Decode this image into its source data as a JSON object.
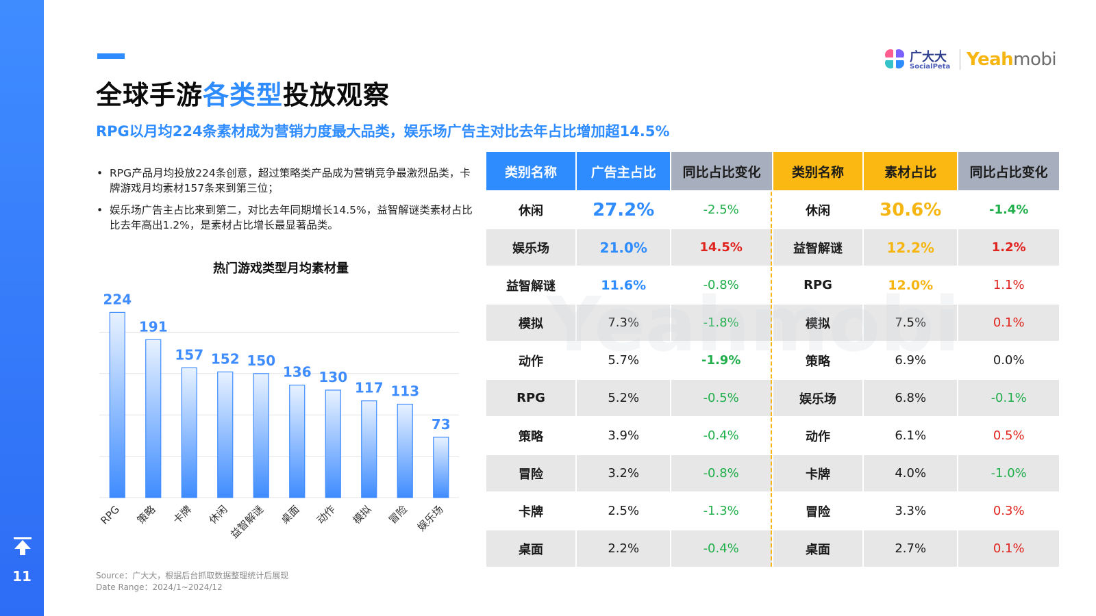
{
  "page": {
    "number": "11"
  },
  "title": {
    "part1": "全球手游",
    "highlight": "各类型",
    "part2": "投放观察"
  },
  "subtitle": "RPG以月均224条素材成为营销力度最大品类，娱乐场广告主对比去年占比增加超14.5%",
  "logo": {
    "cn": "广大大",
    "en": "SocialPeta",
    "yeah_a": "Yeah",
    "yeah_b": "mobi"
  },
  "bullets": [
    "RPG产品月均投放224条创意，超过策略类产品成为营销竞争最激烈品类，卡牌游戏月均素材157条来到第三位；",
    "娱乐场广告主占比来到第二，对比去年同期增长14.5%，益智解谜类素材占比比去年高出1.2%，是素材占比增长最显著品类。"
  ],
  "chart_data": {
    "type": "bar",
    "title": "热门游戏类型月均素材量",
    "categories": [
      "RPG",
      "策略",
      "卡牌",
      "休闲",
      "益智解谜",
      "桌面",
      "动作",
      "模拟",
      "冒险",
      "娱乐场"
    ],
    "values": [
      224,
      191,
      157,
      152,
      150,
      136,
      130,
      117,
      113,
      73
    ],
    "ylim": [
      0,
      250
    ],
    "grid": true,
    "bar_color": "#3f8cff"
  },
  "table": {
    "headers": [
      "类别名称",
      "广告主占比",
      "同比占比变化",
      "类别名称",
      "素材占比",
      "同比占比变化"
    ],
    "rows": [
      {
        "cat1": "休闲",
        "adv": "27.2%",
        "adv_chg": "-2.5%",
        "cat2": "休闲",
        "mat": "30.6%",
        "mat_chg": "-1.4%"
      },
      {
        "cat1": "娱乐场",
        "adv": "21.0%",
        "adv_chg": "14.5%",
        "cat2": "益智解谜",
        "mat": "12.2%",
        "mat_chg": "1.2%"
      },
      {
        "cat1": "益智解谜",
        "adv": "11.6%",
        "adv_chg": "-0.8%",
        "cat2": "RPG",
        "mat": "12.0%",
        "mat_chg": "1.1%"
      },
      {
        "cat1": "模拟",
        "adv": "7.3%",
        "adv_chg": "-1.8%",
        "cat2": "模拟",
        "mat": "7.5%",
        "mat_chg": "0.1%"
      },
      {
        "cat1": "动作",
        "adv": "5.7%",
        "adv_chg": "-1.9%",
        "cat2": "策略",
        "mat": "6.9%",
        "mat_chg": "0.0%"
      },
      {
        "cat1": "RPG",
        "adv": "5.2%",
        "adv_chg": "-0.5%",
        "cat2": "娱乐场",
        "mat": "6.8%",
        "mat_chg": "-0.1%"
      },
      {
        "cat1": "策略",
        "adv": "3.9%",
        "adv_chg": "-0.4%",
        "cat2": "动作",
        "mat": "6.1%",
        "mat_chg": "0.5%"
      },
      {
        "cat1": "冒险",
        "adv": "3.2%",
        "adv_chg": "-0.8%",
        "cat2": "卡牌",
        "mat": "4.0%",
        "mat_chg": "-1.0%"
      },
      {
        "cat1": "卡牌",
        "adv": "2.5%",
        "adv_chg": "-1.3%",
        "cat2": "冒险",
        "mat": "3.3%",
        "mat_chg": "0.3%"
      },
      {
        "cat1": "桌面",
        "adv": "2.2%",
        "adv_chg": "-0.4%",
        "cat2": "桌面",
        "mat": "2.7%",
        "mat_chg": "0.1%"
      }
    ],
    "colors": {
      "blue": "#2f8cff",
      "yellow": "#f6b511",
      "green": "#1fae4a",
      "red": "#e0211c",
      "black": "#1a1a1a"
    }
  },
  "source": {
    "line1": "Source：广大大，根据后台抓取数据整理统计后展现",
    "line2": "Date Range：2024/1~2024/12"
  }
}
